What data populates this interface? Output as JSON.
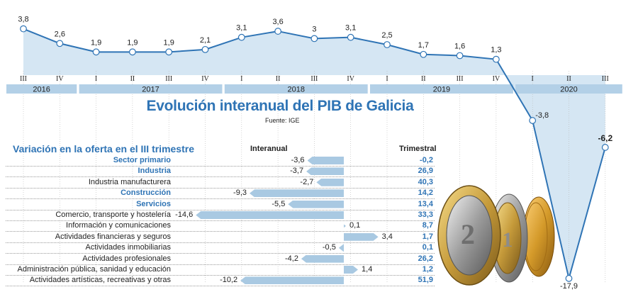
{
  "chart_data": [
    {
      "type": "line",
      "title": "Evolución interanual del PIB de Galicia",
      "source": "Fuente: IGE",
      "years": [
        "2016",
        "2017",
        "2018",
        "2019",
        "2020"
      ],
      "quarters": [
        "III",
        "IV",
        "I",
        "II",
        "III",
        "IV",
        "I",
        "II",
        "III",
        "IV",
        "I",
        "II",
        "III",
        "IV",
        "I",
        "II",
        "III"
      ],
      "values": [
        3.8,
        2.6,
        1.9,
        1.9,
        1.9,
        2.1,
        3.1,
        3.6,
        3.0,
        3.1,
        2.5,
        1.7,
        1.6,
        1.3,
        -3.8,
        -17.9,
        -6.2
      ],
      "value_labels": [
        "3,8",
        "2,6",
        "1,9",
        "1,9",
        "1,9",
        "2,1",
        "3,1",
        "3,6",
        "3",
        "3,1",
        "2,5",
        "1,7",
        "1,6",
        "1,3",
        "-3,8",
        "-17,9",
        "-6,2"
      ],
      "color": "#2f74b5",
      "fill": "#d5e6f3"
    },
    {
      "type": "bar",
      "title": "Variación en la oferta en el III trimestre",
      "header_interanual": "Interanual",
      "header_trimestral": "Trimestral",
      "rows": [
        {
          "label": "Sector primario",
          "sector": true,
          "interanual": -3.6,
          "interanual_label": "-3,6",
          "trimestral": "-0,2"
        },
        {
          "label": "Industria",
          "sector": true,
          "interanual": -3.7,
          "interanual_label": "-3,7",
          "trimestral": "26,9"
        },
        {
          "label": "Industria manufacturera",
          "sector": false,
          "interanual": -2.7,
          "interanual_label": "-2,7",
          "trimestral": "40,3"
        },
        {
          "label": "Construcción",
          "sector": true,
          "interanual": -9.3,
          "interanual_label": "-9,3",
          "trimestral": "14,2"
        },
        {
          "label": "Servicios",
          "sector": true,
          "interanual": -5.5,
          "interanual_label": "-5,5",
          "trimestral": "13,4"
        },
        {
          "label": "Comercio, transporte y hostelería",
          "sector": false,
          "interanual": -14.6,
          "interanual_label": "-14,6",
          "trimestral": "33,3"
        },
        {
          "label": "Información y comunicaciones",
          "sector": false,
          "interanual": 0.1,
          "interanual_label": "0,1",
          "trimestral": "8,7"
        },
        {
          "label": "Actividades financieras y seguros",
          "sector": false,
          "interanual": 3.4,
          "interanual_label": "3,4",
          "trimestral": "1,7"
        },
        {
          "label": "Actividades inmobiliarias",
          "sector": false,
          "interanual": -0.5,
          "interanual_label": "-0,5",
          "trimestral": "0,1"
        },
        {
          "label": "Actividades profesionales",
          "sector": false,
          "interanual": -4.2,
          "interanual_label": "-4,2",
          "trimestral": "26,2"
        },
        {
          "label": "Administración pública, sanidad y educación",
          "sector": false,
          "interanual": 1.4,
          "interanual_label": "1,4",
          "trimestral": "1,2"
        },
        {
          "label": "Actividades artísticas, recreativas y otras",
          "sector": false,
          "interanual": -10.2,
          "interanual_label": "-10,2",
          "trimestral": "51,9"
        }
      ]
    }
  ],
  "coins": {
    "icon": "euro-coins-image",
    "labels": [
      "2",
      "1"
    ]
  }
}
